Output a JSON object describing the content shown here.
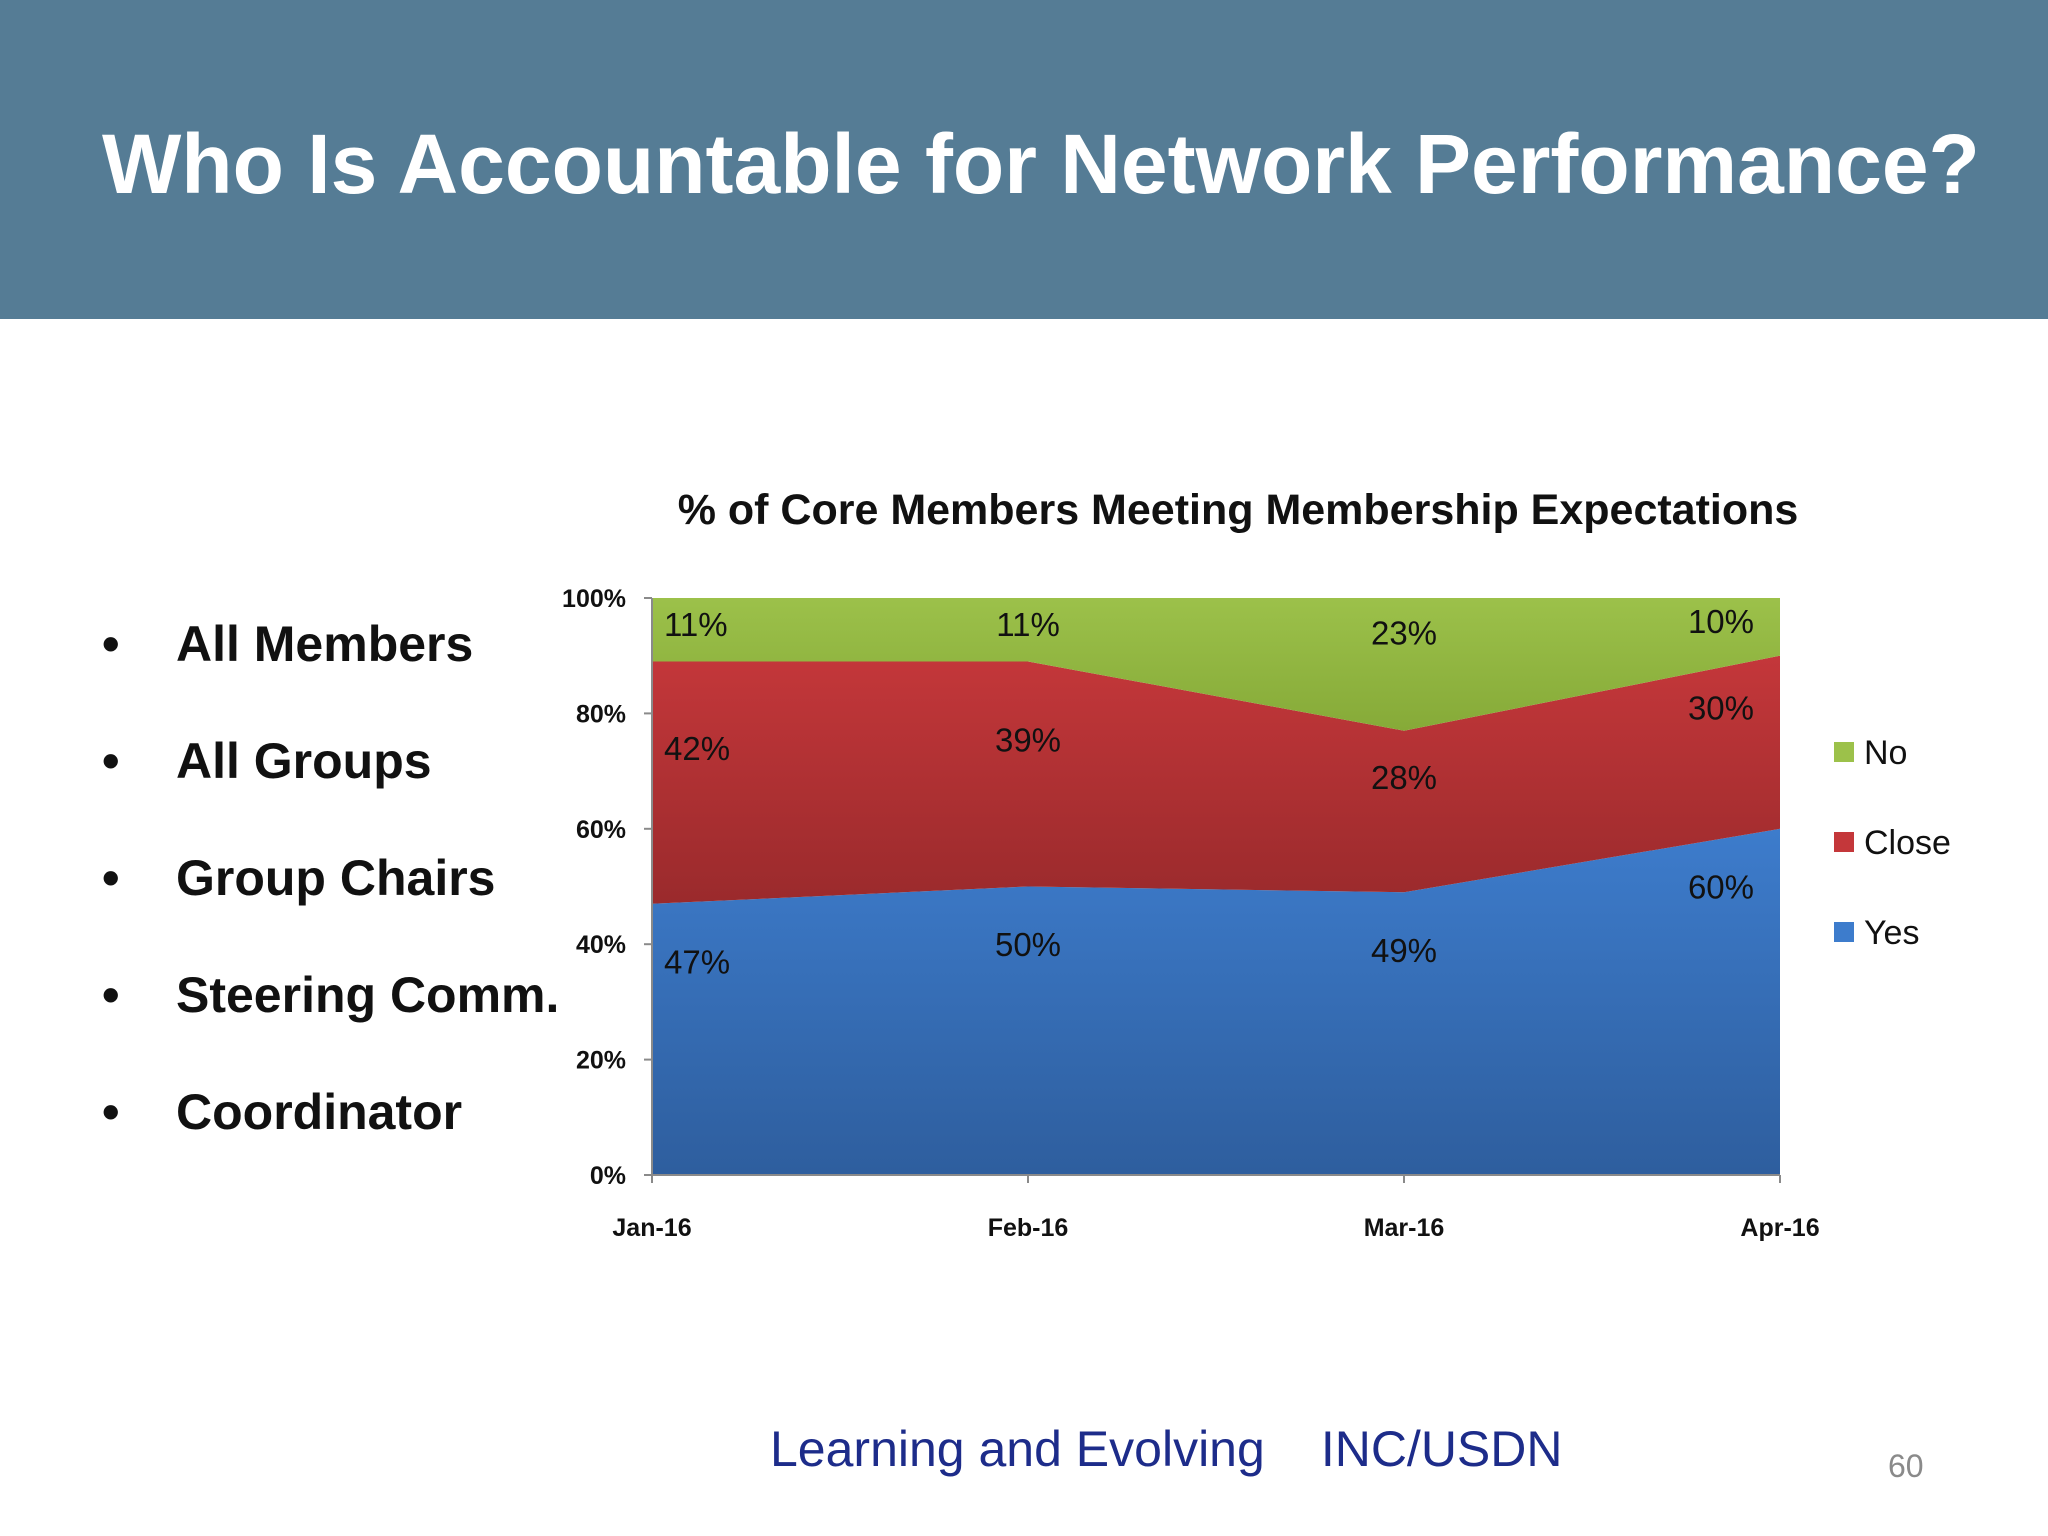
{
  "slide": {
    "title": "Who Is Accountable for Network Performance?",
    "bullets": [
      "All Members",
      "All Groups",
      "Group Chairs",
      "Steering Comm.",
      "Coordinator"
    ],
    "bullet_char": "•",
    "footer_left": "Learning and Evolving",
    "footer_right": "INC/USDN",
    "page_number": "60"
  },
  "colors": {
    "header_bg": "#557c95",
    "yes": "#3d7ccc",
    "close": "#c4373a",
    "no": "#9cc14a",
    "footer_text": "#1d2c8a"
  },
  "chart_data": {
    "type": "area",
    "stacked": true,
    "percent_stacked": true,
    "title": "% of Core Members Meeting Membership Expectations",
    "categories": [
      "Jan-16",
      "Feb-16",
      "Mar-16",
      "Apr-16"
    ],
    "y_ticks": [
      "0%",
      "20%",
      "40%",
      "60%",
      "80%",
      "100%"
    ],
    "ylim": [
      0,
      100
    ],
    "legend_position": "right",
    "series": [
      {
        "name": "Yes",
        "values": [
          47,
          50,
          49,
          60
        ],
        "labels": [
          "47%",
          "50%",
          "49%",
          "60%"
        ]
      },
      {
        "name": "Close",
        "values": [
          42,
          39,
          28,
          30
        ],
        "labels": [
          "42%",
          "39%",
          "28%",
          "30%"
        ]
      },
      {
        "name": "No",
        "values": [
          11,
          11,
          23,
          10
        ],
        "labels": [
          "11%",
          "11%",
          "23%",
          "10%"
        ]
      }
    ],
    "legend_order": [
      "No",
      "Close",
      "Yes"
    ]
  }
}
